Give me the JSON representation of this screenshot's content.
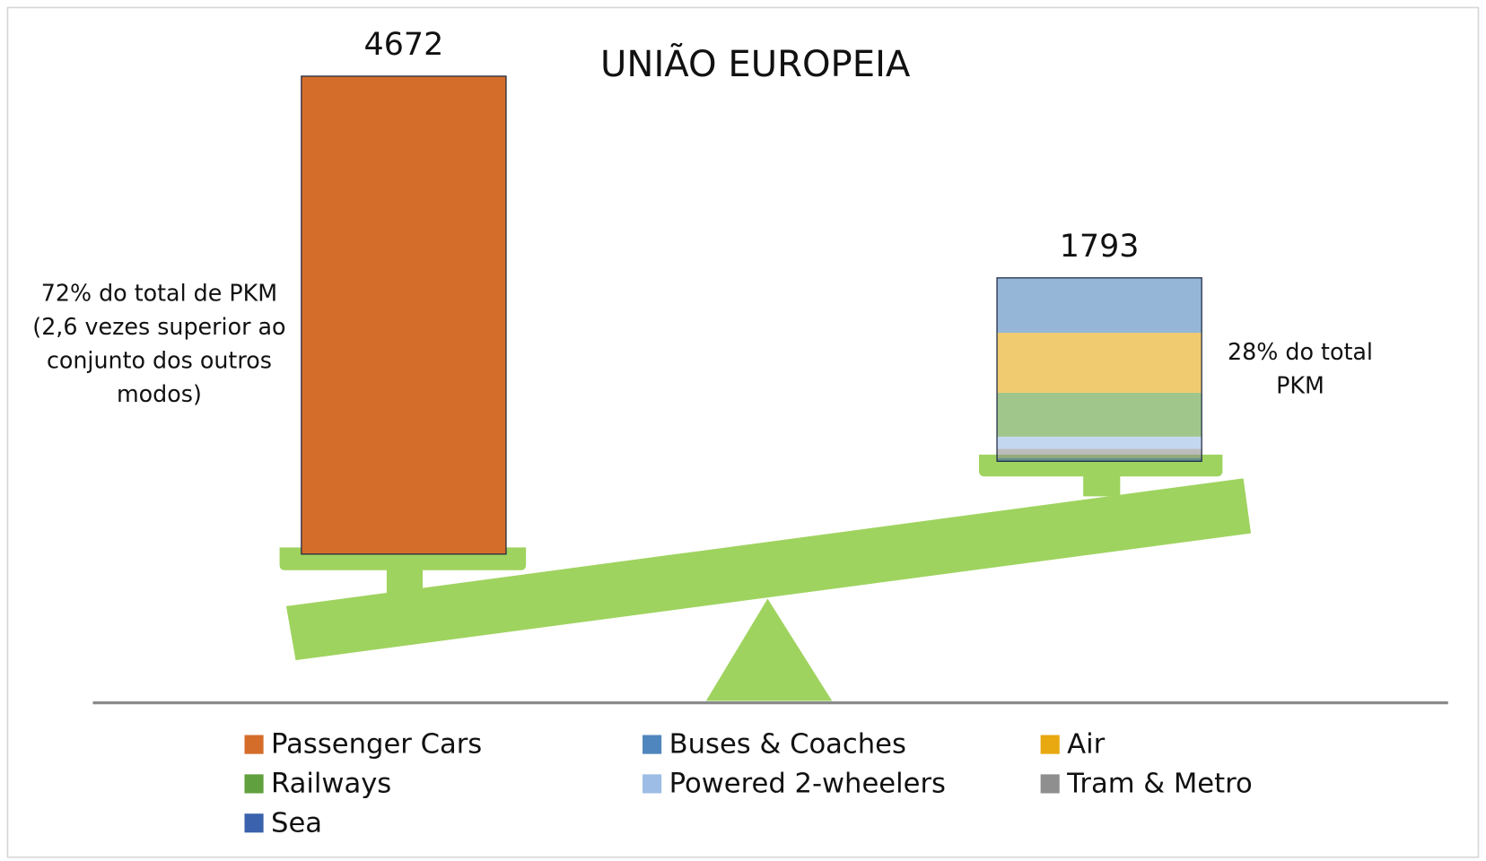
{
  "chart_data": {
    "type": "balance",
    "title": "UNIÃO EUROPEIA",
    "categories": [
      null,
      null
    ],
    "totals": [
      4672,
      1793
    ],
    "series": [
      {
        "name": "Passenger Cars",
        "color": "#d56d2a",
        "values": [
          4672,
          null
        ]
      },
      {
        "name": "Buses & Coaches",
        "color": "#4f86bd",
        "values": [
          null,
          537
        ]
      },
      {
        "name": "Air",
        "color": "#e8a80f",
        "values": [
          null,
          586
        ]
      },
      {
        "name": "Railways",
        "color": "#61a03f",
        "values": [
          null,
          429
        ]
      },
      {
        "name": "Powered 2-wheelers",
        "color": "#9dbde6",
        "values": [
          null,
          119
        ]
      },
      {
        "name": "Tram & Metro",
        "color": "#8f8f8f",
        "values": [
          null,
          91
        ]
      },
      {
        "name": "Sea",
        "color": "#3b62ad",
        "values": [
          null,
          31
        ]
      }
    ],
    "annotations": [
      [
        "72% do total de PKM",
        "(2,6 vezes superior ao",
        "conjunto dos outros",
        "modos)"
      ],
      [
        "28% do total",
        "PKM"
      ]
    ]
  }
}
